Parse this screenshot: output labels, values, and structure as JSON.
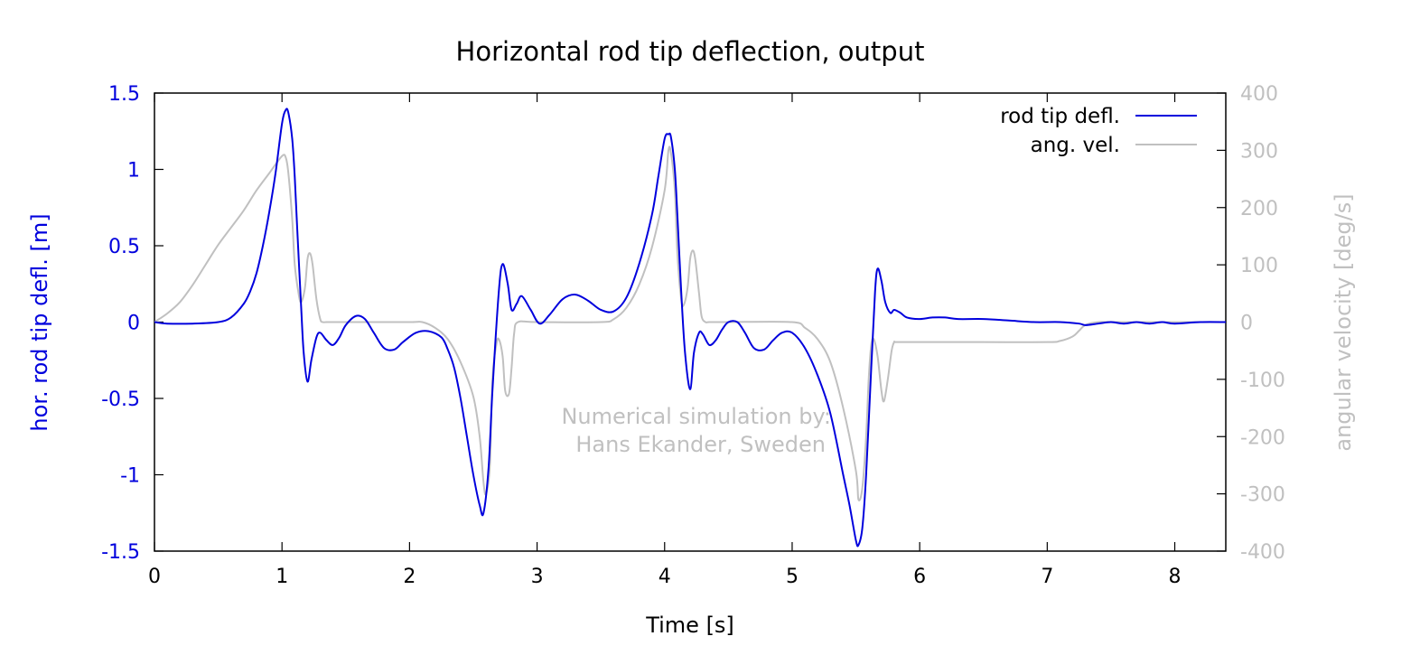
{
  "chart_data": {
    "type": "line",
    "title": "Horizontal rod tip deflection, output",
    "xlabel": "Time [s]",
    "ylabel": "hor. rod tip defl. [m]",
    "y2label": "angular velocity [deg/s]",
    "xlim": [
      0,
      8.4
    ],
    "ylim": [
      -1.5,
      1.5
    ],
    "y2lim": [
      -400,
      400
    ],
    "xticks": [
      0,
      1,
      2,
      3,
      4,
      5,
      6,
      7,
      8
    ],
    "yticks": [
      -1.5,
      -1,
      -0.5,
      0,
      0.5,
      1,
      1.5
    ],
    "y2ticks": [
      -400,
      -300,
      -200,
      -100,
      0,
      100,
      200,
      300,
      400
    ],
    "xtick_labels": [
      "0",
      "1",
      "2",
      "3",
      "4",
      "5",
      "6",
      "7",
      "8"
    ],
    "ytick_labels": [
      "-1.5",
      "-1",
      "-0.5",
      "0",
      "0.5",
      "1",
      "1.5"
    ],
    "y2tick_labels": [
      "-400",
      "-300",
      "-200",
      "-100",
      "0",
      "100",
      "200",
      "300",
      "400"
    ],
    "grid": false,
    "legend_position": "top-right",
    "annotation": [
      "Numerical simulation by:",
      "Hans Ekander, Sweden"
    ],
    "colors": {
      "deflection": "#0000dd",
      "angular_velocity": "#c0c0c0"
    },
    "series": [
      {
        "name": "rod tip defl.",
        "axis": "left",
        "color": "#0000dd",
        "x": [
          0,
          0.1,
          0.3,
          0.5,
          0.6,
          0.7,
          0.75,
          0.8,
          0.85,
          0.9,
          0.95,
          1.0,
          1.03,
          1.05,
          1.08,
          1.1,
          1.12,
          1.15,
          1.17,
          1.2,
          1.23,
          1.27,
          1.3,
          1.35,
          1.4,
          1.45,
          1.5,
          1.58,
          1.65,
          1.72,
          1.8,
          1.88,
          1.95,
          2.05,
          2.15,
          2.25,
          2.3,
          2.35,
          2.4,
          2.45,
          2.5,
          2.55,
          2.58,
          2.62,
          2.65,
          2.7,
          2.73,
          2.77,
          2.8,
          2.84,
          2.88,
          2.95,
          3.02,
          3.1,
          3.2,
          3.3,
          3.4,
          3.5,
          3.6,
          3.7,
          3.8,
          3.9,
          3.95,
          4.0,
          4.03,
          4.05,
          4.08,
          4.1,
          4.13,
          4.16,
          4.2,
          4.23,
          4.27,
          4.3,
          4.35,
          4.4,
          4.45,
          4.5,
          4.57,
          4.63,
          4.7,
          4.78,
          4.85,
          4.92,
          5.0,
          5.1,
          5.2,
          5.3,
          5.4,
          5.45,
          5.5,
          5.52,
          5.55,
          5.58,
          5.62,
          5.65,
          5.67,
          5.7,
          5.73,
          5.77,
          5.8,
          5.85,
          5.9,
          6.0,
          6.1,
          6.2,
          6.3,
          6.5,
          6.7,
          6.9,
          7.1,
          7.25,
          7.3,
          7.4,
          7.5,
          7.6,
          7.7,
          7.8,
          7.9,
          8.0,
          8.2,
          8.4
        ],
        "y": [
          0,
          -0.01,
          -0.01,
          0.0,
          0.03,
          0.12,
          0.2,
          0.32,
          0.5,
          0.72,
          0.98,
          1.3,
          1.39,
          1.37,
          1.2,
          0.95,
          0.6,
          0.1,
          -0.2,
          -0.39,
          -0.25,
          -0.1,
          -0.07,
          -0.12,
          -0.15,
          -0.1,
          -0.02,
          0.04,
          0.02,
          -0.07,
          -0.17,
          -0.18,
          -0.13,
          -0.07,
          -0.06,
          -0.1,
          -0.18,
          -0.3,
          -0.5,
          -0.75,
          -1.0,
          -1.2,
          -1.25,
          -0.95,
          -0.45,
          0.2,
          0.38,
          0.25,
          0.08,
          0.12,
          0.17,
          0.08,
          -0.01,
          0.05,
          0.15,
          0.18,
          0.14,
          0.08,
          0.07,
          0.16,
          0.38,
          0.7,
          0.95,
          1.2,
          1.23,
          1.21,
          1.0,
          0.7,
          0.2,
          -0.2,
          -0.44,
          -0.2,
          -0.07,
          -0.08,
          -0.15,
          -0.12,
          -0.05,
          0.0,
          0.0,
          -0.07,
          -0.17,
          -0.18,
          -0.12,
          -0.07,
          -0.07,
          -0.17,
          -0.35,
          -0.6,
          -1.0,
          -1.2,
          -1.43,
          -1.46,
          -1.35,
          -1.0,
          -0.3,
          0.2,
          0.35,
          0.27,
          0.13,
          0.06,
          0.08,
          0.06,
          0.03,
          0.02,
          0.03,
          0.03,
          0.02,
          0.02,
          0.01,
          0.0,
          0.0,
          -0.01,
          -0.02,
          -0.01,
          0.0,
          -0.01,
          0.0,
          -0.01,
          0.0,
          -0.01,
          0.0,
          0.0
        ]
      },
      {
        "name": "ang. vel.",
        "axis": "right",
        "color": "#c0c0c0",
        "x": [
          0,
          0.1,
          0.2,
          0.3,
          0.4,
          0.5,
          0.6,
          0.7,
          0.8,
          0.9,
          1.0,
          1.03,
          1.05,
          1.08,
          1.1,
          1.13,
          1.15,
          1.18,
          1.2,
          1.22,
          1.24,
          1.27,
          1.3,
          1.32,
          1.35,
          1.5,
          2.0,
          2.1,
          2.2,
          2.3,
          2.4,
          2.5,
          2.55,
          2.58,
          2.6,
          2.63,
          2.65,
          2.68,
          2.7,
          2.73,
          2.75,
          2.78,
          2.8,
          2.82,
          2.85,
          3.0,
          3.5,
          3.6,
          3.7,
          3.8,
          3.9,
          4.0,
          4.03,
          4.05,
          4.08,
          4.1,
          4.13,
          4.15,
          4.18,
          4.2,
          4.22,
          4.24,
          4.27,
          4.29,
          4.32,
          4.35,
          4.5,
          5.0,
          5.1,
          5.2,
          5.3,
          5.4,
          5.5,
          5.52,
          5.55,
          5.58,
          5.6,
          5.62,
          5.64,
          5.67,
          5.7,
          5.72,
          5.75,
          5.78,
          5.8,
          5.82,
          6.0,
          6.5,
          7.0,
          7.1,
          7.2,
          7.25,
          7.3,
          7.4,
          7.6,
          7.8,
          8.0,
          8.2,
          8.4
        ],
        "y": [
          0,
          15,
          35,
          65,
          100,
          135,
          165,
          195,
          230,
          260,
          290,
          287,
          260,
          180,
          100,
          50,
          35,
          60,
          110,
          120,
          100,
          40,
          5,
          0,
          0,
          0,
          0,
          0,
          -10,
          -30,
          -70,
          -130,
          -200,
          -280,
          -300,
          -250,
          -100,
          -40,
          -30,
          -60,
          -120,
          -125,
          -80,
          -20,
          0,
          0,
          0,
          5,
          25,
          65,
          130,
          230,
          300,
          295,
          230,
          120,
          40,
          30,
          60,
          110,
          125,
          110,
          50,
          10,
          0,
          0,
          0,
          0,
          -10,
          -30,
          -70,
          -150,
          -260,
          -310,
          -290,
          -200,
          -100,
          -40,
          -30,
          -60,
          -120,
          -138,
          -100,
          -50,
          -35,
          -35,
          -35,
          -35,
          -35,
          -33,
          -25,
          -15,
          -5,
          0,
          0,
          0,
          0,
          0,
          0
        ]
      }
    ]
  }
}
